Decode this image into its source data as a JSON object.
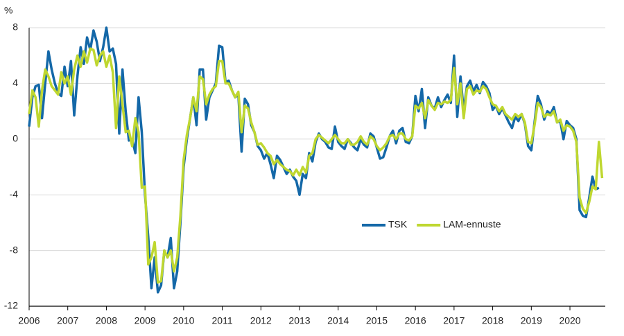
{
  "chart_data": {
    "type": "line",
    "y_unit": "%",
    "legend": "center right",
    "grid": true,
    "ylim": [
      -12,
      8
    ],
    "yticks": [
      -12,
      -8,
      -4,
      0,
      4,
      8
    ],
    "categories": [
      "2006",
      null,
      null,
      null,
      null,
      null,
      null,
      null,
      null,
      null,
      null,
      null,
      "2007",
      null,
      null,
      null,
      null,
      null,
      null,
      null,
      null,
      null,
      null,
      null,
      "2008",
      null,
      null,
      null,
      null,
      null,
      null,
      null,
      null,
      null,
      null,
      null,
      "2009",
      null,
      null,
      null,
      null,
      null,
      null,
      null,
      null,
      null,
      null,
      null,
      "2010",
      null,
      null,
      null,
      null,
      null,
      null,
      null,
      null,
      null,
      null,
      null,
      "2011",
      null,
      null,
      null,
      null,
      null,
      null,
      null,
      null,
      null,
      null,
      null,
      "2012",
      null,
      null,
      null,
      null,
      null,
      null,
      null,
      null,
      null,
      null,
      null,
      "2013",
      null,
      null,
      null,
      null,
      null,
      null,
      null,
      null,
      null,
      null,
      null,
      "2014",
      null,
      null,
      null,
      null,
      null,
      null,
      null,
      null,
      null,
      null,
      null,
      "2015",
      null,
      null,
      null,
      null,
      null,
      null,
      null,
      null,
      null,
      null,
      null,
      "2016",
      null,
      null,
      null,
      null,
      null,
      null,
      null,
      null,
      null,
      null,
      null,
      "2017",
      null,
      null,
      null,
      null,
      null,
      null,
      null,
      null,
      null,
      null,
      null,
      "2018",
      null,
      null,
      null,
      null,
      null,
      null,
      null,
      null,
      null,
      null,
      null,
      "2019",
      null,
      null,
      null,
      null,
      null,
      null,
      null,
      null,
      null,
      null,
      null,
      "2020",
      null,
      null,
      null,
      null,
      null,
      null,
      null,
      null,
      null,
      null
    ],
    "series": [
      {
        "name": "TSK",
        "color": "#1468a8",
        "values": [
          0.9,
          3.0,
          3.8,
          3.9,
          1.5,
          4.0,
          6.3,
          5.0,
          4.0,
          3.3,
          3.1,
          5.2,
          3.8,
          5.6,
          1.7,
          4.5,
          6.6,
          5.4,
          7.3,
          6.4,
          7.8,
          7.0,
          5.6,
          6.6,
          8.0,
          6.3,
          6.5,
          5.4,
          0.4,
          5.0,
          2.0,
          -0.1,
          0.0,
          -1.0,
          3.0,
          0.5,
          -4.0,
          -7.0,
          -10.7,
          -8.5,
          -11.0,
          -10.5,
          -8.0,
          -8.5,
          -7.1,
          -10.7,
          -9.5,
          -6.0,
          -2.0,
          0.0,
          1.5,
          3.0,
          1.0,
          5.0,
          5.0,
          1.4,
          3.0,
          3.5,
          4.0,
          6.7,
          6.6,
          4.1,
          4.2,
          3.5,
          3.0,
          3.2,
          -0.9,
          2.9,
          2.5,
          1.0,
          0.5,
          -0.5,
          -0.8,
          -1.4,
          -1.0,
          -1.8,
          -2.8,
          -1.2,
          -1.5,
          -2.0,
          -2.5,
          -2.2,
          -2.7,
          -3.0,
          -4.0,
          -2.5,
          -2.8,
          -1.0,
          -1.6,
          -0.2,
          0.4,
          0.0,
          -0.2,
          -0.6,
          -0.7,
          0.9,
          -0.2,
          -0.5,
          -0.7,
          0.0,
          -0.3,
          -0.6,
          -0.8,
          0.0,
          -0.4,
          -0.6,
          0.4,
          0.2,
          -0.6,
          -1.4,
          -1.3,
          -0.6,
          0.2,
          0.6,
          -0.3,
          0.6,
          0.8,
          -0.2,
          -0.3,
          0.2,
          3.1,
          2.0,
          3.6,
          0.8,
          3.0,
          2.4,
          2.2,
          3.0,
          2.3,
          2.8,
          3.2,
          2.6,
          6.0,
          1.6,
          4.5,
          2.0,
          3.8,
          4.2,
          3.4,
          3.9,
          3.3,
          4.1,
          3.8,
          3.3,
          2.1,
          2.4,
          1.8,
          2.2,
          1.7,
          1.2,
          0.8,
          1.6,
          1.3,
          1.8,
          1.1,
          -0.5,
          -0.8,
          1.2,
          3.1,
          2.5,
          1.4,
          2.0,
          1.8,
          2.3,
          1.2,
          1.3,
          0.0,
          1.3,
          1.0,
          0.8,
          0.0,
          -5.1,
          -5.5,
          -5.6,
          -4.2,
          -2.7,
          -3.6,
          -3.5,
          null
        ]
      },
      {
        "name": "LAM-ennuste",
        "color": "#bfd730",
        "values": [
          1.8,
          3.5,
          3.0,
          0.9,
          3.5,
          5.0,
          4.5,
          3.8,
          3.5,
          3.2,
          4.8,
          4.0,
          4.5,
          3.2,
          5.0,
          6.0,
          5.2,
          6.3,
          5.5,
          6.5,
          6.4,
          5.3,
          6.0,
          6.3,
          5.2,
          6.0,
          4.8,
          0.8,
          4.5,
          2.5,
          0.5,
          0.6,
          -0.5,
          1.5,
          0.5,
          -3.5,
          -3.4,
          -9.0,
          -8.5,
          -7.4,
          -10.3,
          -10.2,
          -8.0,
          -8.5,
          -8.0,
          -9.5,
          -8.5,
          -5.5,
          -1.5,
          0.3,
          1.5,
          3.0,
          2.0,
          4.5,
          4.3,
          2.5,
          3.2,
          3.6,
          3.8,
          5.6,
          5.6,
          4.0,
          4.0,
          3.5,
          3.0,
          3.4,
          0.5,
          2.4,
          2.2,
          1.2,
          0.5,
          -0.4,
          -0.3,
          -0.6,
          -1.0,
          -1.2,
          -1.8,
          -1.5,
          -1.8,
          -2.0,
          -2.2,
          -2.3,
          -2.6,
          -2.2,
          -2.6,
          -2.0,
          -2.4,
          -1.2,
          -1.0,
          0.0,
          0.3,
          0.1,
          -0.1,
          -0.3,
          0.0,
          0.3,
          0.0,
          -0.3,
          -0.3,
          0.0,
          -0.4,
          -0.4,
          -0.2,
          0.2,
          -0.2,
          -0.4,
          0.2,
          0.0,
          -0.5,
          -0.8,
          -0.6,
          -0.3,
          0.2,
          0.3,
          0.0,
          0.4,
          0.4,
          0.0,
          -0.1,
          0.2,
          2.4,
          2.2,
          2.6,
          1.5,
          2.8,
          2.4,
          2.1,
          2.6,
          2.5,
          2.7,
          2.6,
          2.8,
          5.1,
          2.5,
          4.0,
          1.5,
          3.6,
          3.8,
          3.2,
          3.5,
          3.4,
          3.8,
          3.6,
          3.0,
          2.5,
          2.4,
          2.0,
          2.3,
          1.8,
          1.6,
          1.4,
          1.8,
          1.6,
          1.8,
          1.2,
          -0.2,
          -0.3,
          1.0,
          2.6,
          2.3,
          1.6,
          1.8,
          1.7,
          2.0,
          1.2,
          1.4,
          0.6,
          1.0,
          0.9,
          0.6,
          -0.2,
          -4.2,
          -5.0,
          -5.3,
          -4.5,
          -3.4,
          -3.6,
          -0.2,
          -2.8
        ]
      }
    ]
  }
}
